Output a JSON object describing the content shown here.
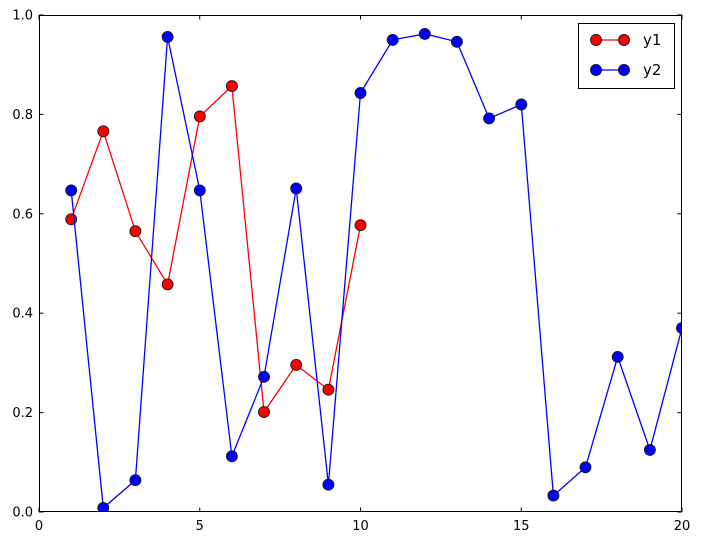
{
  "chart_data": {
    "type": "line",
    "title": "",
    "xlabel": "",
    "ylabel": "",
    "xlim": [
      0,
      20
    ],
    "ylim": [
      0.0,
      1.0
    ],
    "grid": false,
    "legend_position": "upper right",
    "x_tick_values": [
      0,
      5,
      10,
      15,
      20
    ],
    "x_tick_labels": [
      "0",
      "5",
      "10",
      "15",
      "20"
    ],
    "y_tick_values": [
      0.0,
      0.2,
      0.4,
      0.6,
      0.8,
      1.0
    ],
    "y_tick_labels": [
      "0.0",
      "0.2",
      "0.4",
      "0.6",
      "0.8",
      "1.0"
    ],
    "series": [
      {
        "name": "y1",
        "color": "#ff0000",
        "marker": "circle",
        "x": [
          1,
          2,
          3,
          4,
          5,
          6,
          7,
          8,
          9,
          10
        ],
        "values": [
          0.589,
          0.766,
          0.565,
          0.458,
          0.796,
          0.857,
          0.201,
          0.296,
          0.246,
          0.577
        ]
      },
      {
        "name": "y2",
        "color": "#0000ff",
        "marker": "circle",
        "x": [
          1,
          2,
          3,
          4,
          5,
          6,
          7,
          8,
          9,
          10,
          11,
          12,
          13,
          14,
          15,
          16,
          17,
          18,
          19,
          20
        ],
        "values": [
          0.647,
          0.008,
          0.064,
          0.956,
          0.647,
          0.112,
          0.272,
          0.651,
          0.055,
          0.843,
          0.95,
          0.962,
          0.946,
          0.792,
          0.82,
          0.033,
          0.09,
          0.312,
          0.125,
          0.37
        ]
      }
    ]
  },
  "colors": {
    "background": "#ffffff",
    "axis": "#000000",
    "marker_edge": "#1a1a1a",
    "legend_border": "#000000"
  },
  "layout_values": {
    "marker_radius": 5.5,
    "line_width": 1.3
  }
}
